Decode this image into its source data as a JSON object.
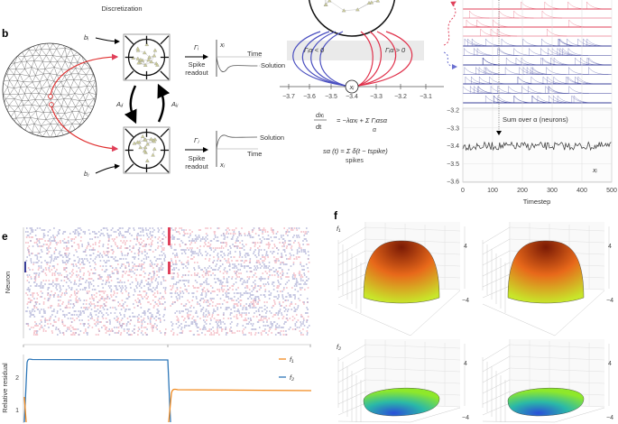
{
  "header": {
    "discretization": "Discretization"
  },
  "panel_b": {
    "label": "b",
    "b_i": "bᵢ",
    "b_j": "bⱼ",
    "A_ji": "Aⱼᵢ",
    "A_ij": "Aᵢⱼ",
    "gamma_i": "Γᵢ",
    "gamma_j": "Γⱼ",
    "spike": "Spike",
    "readout": "readout",
    "x_i": "xᵢ",
    "x_j": "xⱼ",
    "time": "Time",
    "solution": "Solution"
  },
  "panel_c": {
    "neg": "Γᵢα < 0",
    "pos": "Γᵢα > 0",
    "axis_ticks": [
      "−3.7",
      "−3.6",
      "−3.5",
      "−3.4",
      "−3.3",
      "−3.2",
      "−3.1"
    ],
    "node": "xᵢ",
    "eq1_lhs_num": "dxᵢ",
    "eq1_lhs_den": "dt",
    "eq1_rhs": "= −λαxᵢ + Σ Γᵢαsα",
    "eq1_sub": "α",
    "eq2": "sα (t) = Σ δ(t − tspike)",
    "eq2_sub": "spikes"
  },
  "panel_d": {
    "annotation": "Sum over α (neurons)",
    "series_label": "xᵢ",
    "xlabel": "Timestep",
    "xticks": [
      "0",
      "100",
      "200",
      "300",
      "400",
      "500"
    ],
    "yticks": [
      "−3.2",
      "−3.3",
      "−3.4",
      "−3.5",
      "−3.6"
    ],
    "colors": {
      "excitatory": "#e0405a",
      "inhibitory": "#3a3f9a",
      "trace": "#333333"
    }
  },
  "panel_e": {
    "label": "e",
    "ylabel_top": "Neuron",
    "ylabel_bottom": "Relative residual",
    "yticks": [
      "2",
      "1"
    ],
    "legend": [
      {
        "name": "f₁",
        "color": "#f28a1e"
      },
      {
        "name": "f₂",
        "color": "#2e77b8"
      }
    ]
  },
  "panel_f": {
    "label": "f",
    "row_labels": [
      "f₁",
      "f₂"
    ],
    "zticks": [
      "4",
      "−4"
    ],
    "colormaps": {
      "f1": [
        "#7a1a05",
        "#e8691a",
        "#c8e62a"
      ],
      "f2": [
        "#2a4fd8",
        "#2ab8a8",
        "#8ee82a"
      ]
    }
  }
}
